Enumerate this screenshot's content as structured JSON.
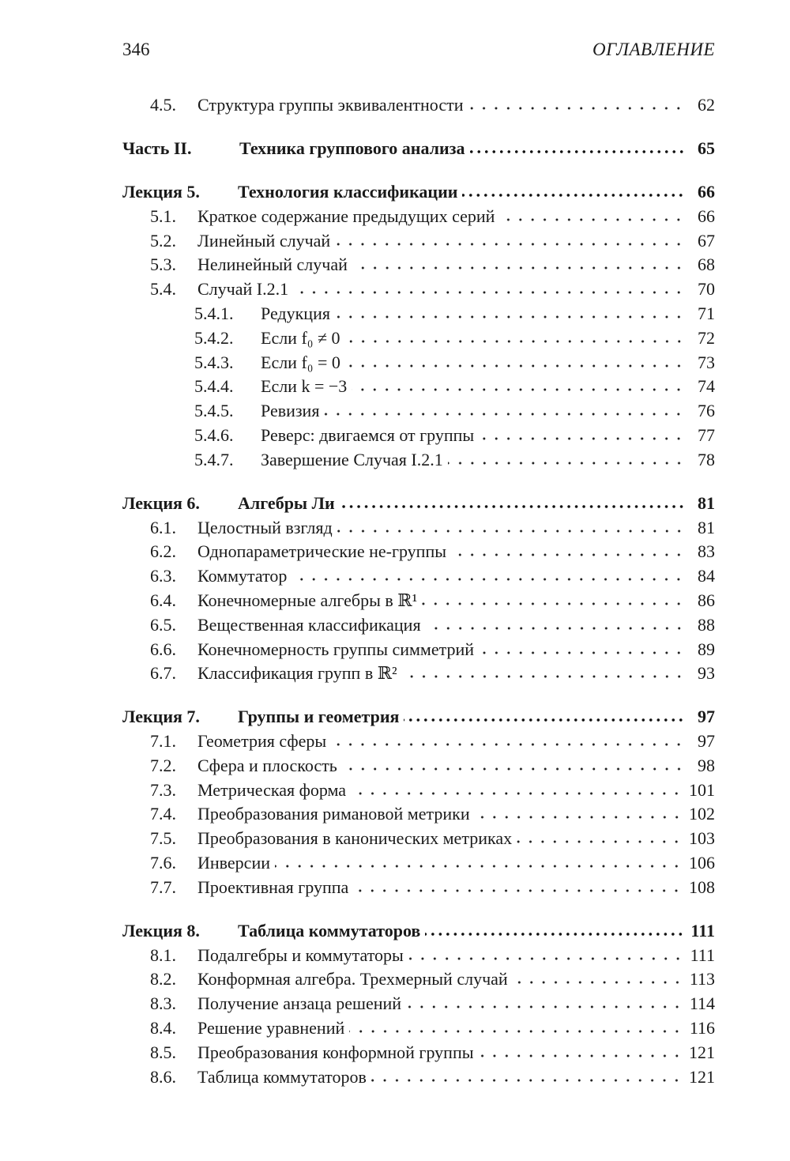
{
  "header": {
    "page_number": "346",
    "running_title": "ОГЛАВЛЕНИЕ"
  },
  "toc": [
    {
      "level": 1,
      "num": "4.5.",
      "title": "Структура группы эквивалентности",
      "page": "62"
    },
    {
      "level": 0,
      "part": true,
      "num": "Часть II.",
      "title": "Техника группового анализа",
      "page": "65"
    },
    {
      "level": 0,
      "num": "Лекция 5.",
      "title": "Технология классификации",
      "page": "66"
    },
    {
      "level": 1,
      "num": "5.1.",
      "title": "Краткое содержание предыдущих серий",
      "page": "66"
    },
    {
      "level": 1,
      "num": "5.2.",
      "title": "Линейный случай",
      "page": "67"
    },
    {
      "level": 1,
      "num": "5.3.",
      "title": "Нелинейный случай",
      "page": "68"
    },
    {
      "level": 1,
      "num": "5.4.",
      "title": "Случай I.2.1",
      "page": "70"
    },
    {
      "level": 2,
      "num": "5.4.1.",
      "title": "Редукция",
      "page": "71"
    },
    {
      "level": 2,
      "num": "5.4.2.",
      "title": "Если f₀ ≠ 0",
      "page": "72"
    },
    {
      "level": 2,
      "num": "5.4.3.",
      "title": "Если f₀ = 0",
      "page": "73"
    },
    {
      "level": 2,
      "num": "5.4.4.",
      "title": "Если k = −3",
      "page": "74"
    },
    {
      "level": 2,
      "num": "5.4.5.",
      "title": "Ревизия",
      "page": "76"
    },
    {
      "level": 2,
      "num": "5.4.6.",
      "title": "Реверс: двигаемся от группы",
      "page": "77"
    },
    {
      "level": 2,
      "num": "5.4.7.",
      "title": "Завершение Случая I.2.1",
      "page": "78"
    },
    {
      "level": 0,
      "num": "Лекция 6.",
      "title": "Алгебры Ли",
      "page": "81"
    },
    {
      "level": 1,
      "num": "6.1.",
      "title": "Целостный взгляд",
      "page": "81"
    },
    {
      "level": 1,
      "num": "6.2.",
      "title": "Однопараметрические не-группы",
      "page": "83"
    },
    {
      "level": 1,
      "num": "6.3.",
      "title": "Коммутатор",
      "page": "84"
    },
    {
      "level": 1,
      "num": "6.4.",
      "title": "Конечномерные алгебры в ℝ¹",
      "page": "86"
    },
    {
      "level": 1,
      "num": "6.5.",
      "title": "Вещественная классификация",
      "page": "88"
    },
    {
      "level": 1,
      "num": "6.6.",
      "title": "Конечномерность группы симметрий",
      "page": "89"
    },
    {
      "level": 1,
      "num": "6.7.",
      "title": "Классификация групп в ℝ²",
      "page": "93"
    },
    {
      "level": 0,
      "num": "Лекция 7.",
      "title": "Группы и геометрия",
      "page": "97"
    },
    {
      "level": 1,
      "num": "7.1.",
      "title": "Геометрия сферы",
      "page": "97"
    },
    {
      "level": 1,
      "num": "7.2.",
      "title": "Сфера и плоскость",
      "page": "98"
    },
    {
      "level": 1,
      "num": "7.3.",
      "title": "Метрическая форма",
      "page": "101"
    },
    {
      "level": 1,
      "num": "7.4.",
      "title": "Преобразования римановой метрики",
      "page": "102"
    },
    {
      "level": 1,
      "num": "7.5.",
      "title": "Преобразования в канонических метриках",
      "page": "103"
    },
    {
      "level": 1,
      "num": "7.6.",
      "title": "Инверсии",
      "page": "106"
    },
    {
      "level": 1,
      "num": "7.7.",
      "title": "Проективная группа",
      "page": "108"
    },
    {
      "level": 0,
      "num": "Лекция 8.",
      "title": "Таблица коммутаторов",
      "page": "111"
    },
    {
      "level": 1,
      "num": "8.1.",
      "title": "Подалгебры и коммутаторы",
      "page": "111"
    },
    {
      "level": 1,
      "num": "8.2.",
      "title": "Конформная алгебра. Трехмерный случай",
      "page": "113"
    },
    {
      "level": 1,
      "num": "8.3.",
      "title": "Получение анзаца решений",
      "page": "114"
    },
    {
      "level": 1,
      "num": "8.4.",
      "title": "Решение уравнений",
      "page": "116"
    },
    {
      "level": 1,
      "num": "8.5.",
      "title": "Преобразования конформной группы",
      "page": "121"
    },
    {
      "level": 1,
      "num": "8.6.",
      "title": "Таблица коммутаторов",
      "page": "121"
    }
  ]
}
